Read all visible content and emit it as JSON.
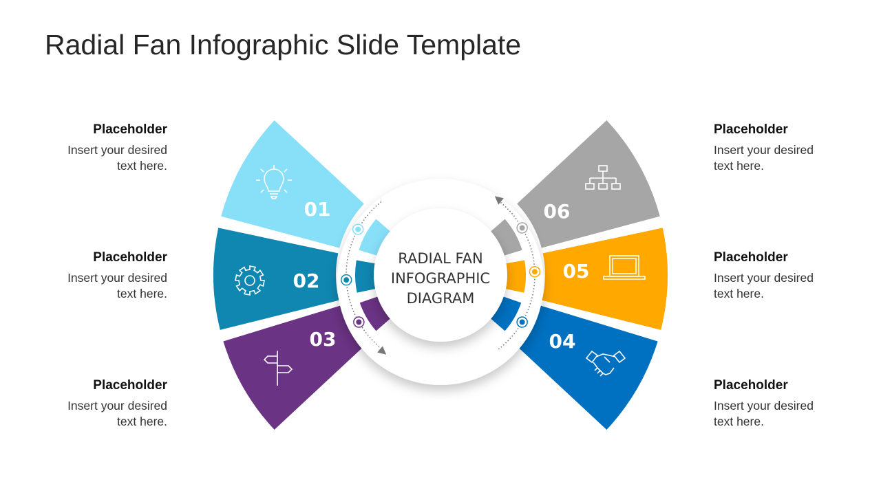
{
  "slide": {
    "title": "Radial Fan Infographic Slide Template"
  },
  "center": {
    "lines": [
      "RADIAL FAN",
      "INFOGRAPHIC",
      "DIAGRAM"
    ]
  },
  "segments": [
    {
      "number": "01",
      "color": "#87dff8",
      "icon": "lightbulb-icon"
    },
    {
      "number": "02",
      "color": "#0f87b0",
      "icon": "gear-icon"
    },
    {
      "number": "03",
      "color": "#6b3384",
      "icon": "signpost-icon"
    },
    {
      "number": "04",
      "color": "#0070c0",
      "icon": "handshake-icon"
    },
    {
      "number": "05",
      "color": "#ffa800",
      "icon": "laptop-icon"
    },
    {
      "number": "06",
      "color": "#a6a6a6",
      "icon": "org-chart-icon"
    }
  ],
  "placeholders": [
    {
      "heading": "Placeholder",
      "body_1": "Insert your desired",
      "body_2": "text here."
    },
    {
      "heading": "Placeholder",
      "body_1": "Insert your desired",
      "body_2": "text here."
    },
    {
      "heading": "Placeholder",
      "body_1": "Insert your desired",
      "body_2": "text here."
    },
    {
      "heading": "Placeholder",
      "body_1": "Insert your desired",
      "body_2": "text here."
    },
    {
      "heading": "Placeholder",
      "body_1": "Insert your desired",
      "body_2": "text here."
    },
    {
      "heading": "Placeholder",
      "body_1": "Insert your desired",
      "body_2": "text here."
    }
  ]
}
